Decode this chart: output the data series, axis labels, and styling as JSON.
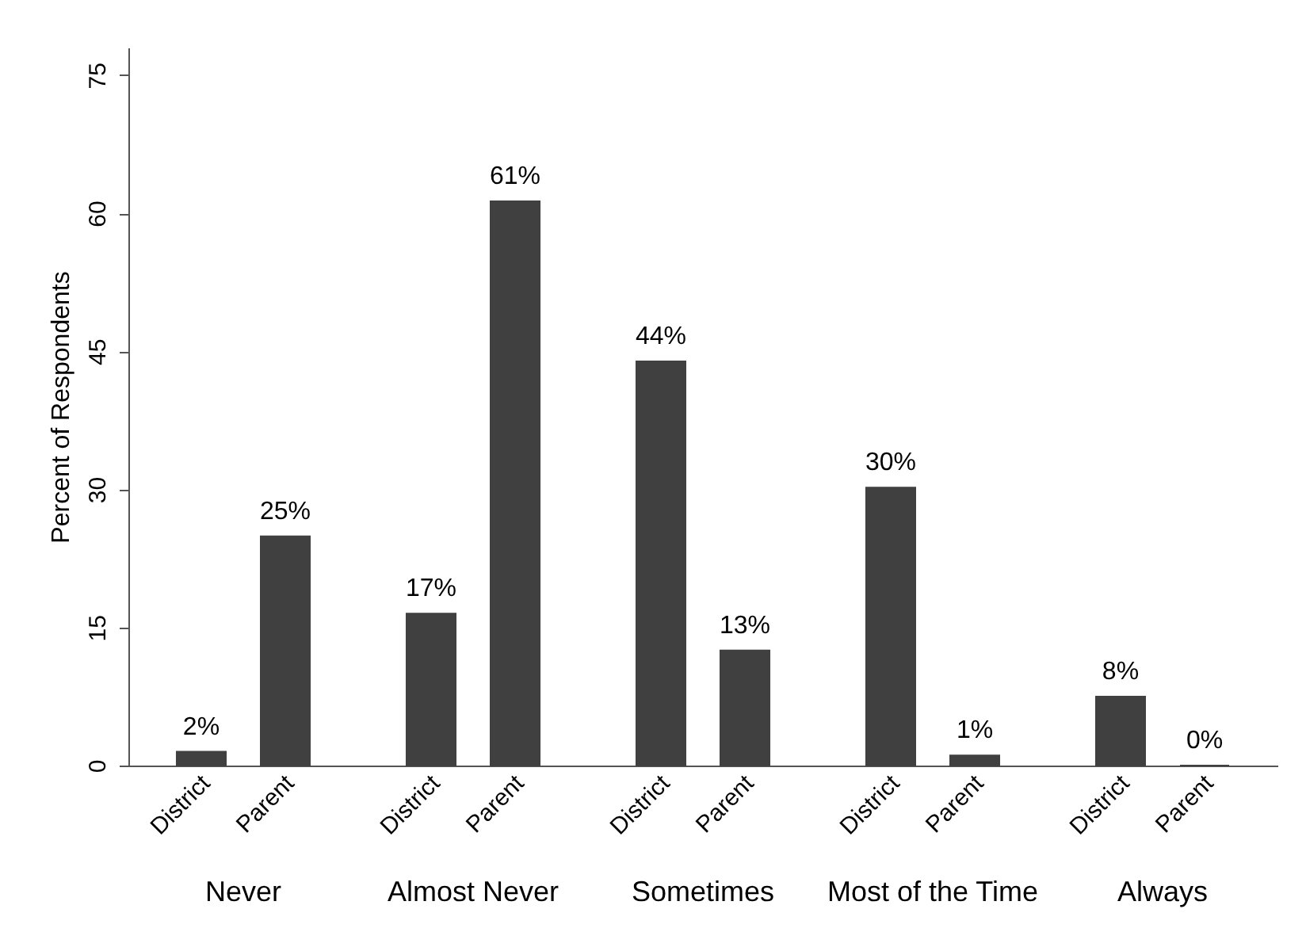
{
  "chart_data": {
    "type": "bar",
    "ylabel": "Percent of Respondents",
    "categories": [
      "Never",
      "Almost Never",
      "Sometimes",
      "Most of the Time",
      "Always"
    ],
    "series": [
      {
        "name": "District",
        "color": "#404040",
        "values": [
          1.5,
          16.5,
          43.9,
          30.2,
          7.5
        ],
        "value_labels": [
          "2%",
          "17%",
          "44%",
          "30%",
          "8%"
        ]
      },
      {
        "name": "Parent",
        "color": "#404040",
        "values": [
          24.9,
          61.3,
          12.5,
          1.1,
          0
        ],
        "value_labels": [
          "25%",
          "61%",
          "13%",
          "1%",
          "0%"
        ]
      }
    ],
    "ylim": [
      0,
      78
    ],
    "yticks": [
      0,
      15,
      30,
      45,
      60,
      75
    ]
  }
}
